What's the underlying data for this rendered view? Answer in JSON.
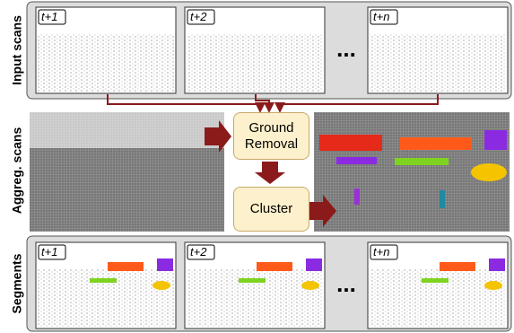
{
  "rows": [
    {
      "label": "Input scans",
      "frames": [
        "t+1",
        "t+2",
        "t+n"
      ],
      "ellipsis": "..."
    },
    {
      "label": "Aggreg. scans"
    },
    {
      "label": "Segments",
      "frames": [
        "t+1",
        "t+2",
        "t+n"
      ],
      "ellipsis": "..."
    }
  ],
  "nodes": [
    {
      "label": "Ground Removal"
    },
    {
      "label": "Cluster"
    }
  ]
}
